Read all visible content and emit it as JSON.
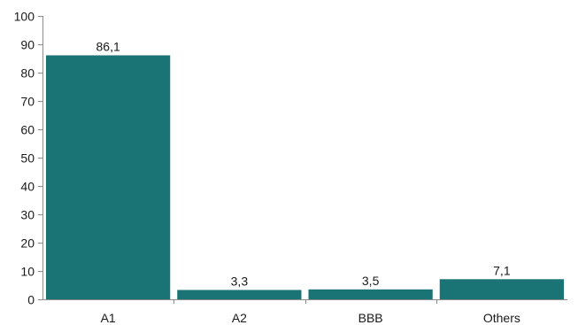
{
  "chart_data": {
    "type": "bar",
    "title": "",
    "xlabel": "",
    "ylabel": "",
    "categories": [
      "A1",
      "A2",
      "BBB",
      "Others"
    ],
    "values": [
      86.1,
      3.3,
      3.5,
      7.1
    ],
    "value_labels": [
      "86,1",
      "3,3",
      "3,5",
      "7,1"
    ],
    "ylim": [
      0,
      100
    ],
    "yticks": [
      "0",
      "10",
      "20",
      "30",
      "40",
      "50",
      "60",
      "70",
      "80",
      "90",
      "100"
    ],
    "grid": false,
    "legend": "none",
    "bar_color": "#1a7374"
  }
}
